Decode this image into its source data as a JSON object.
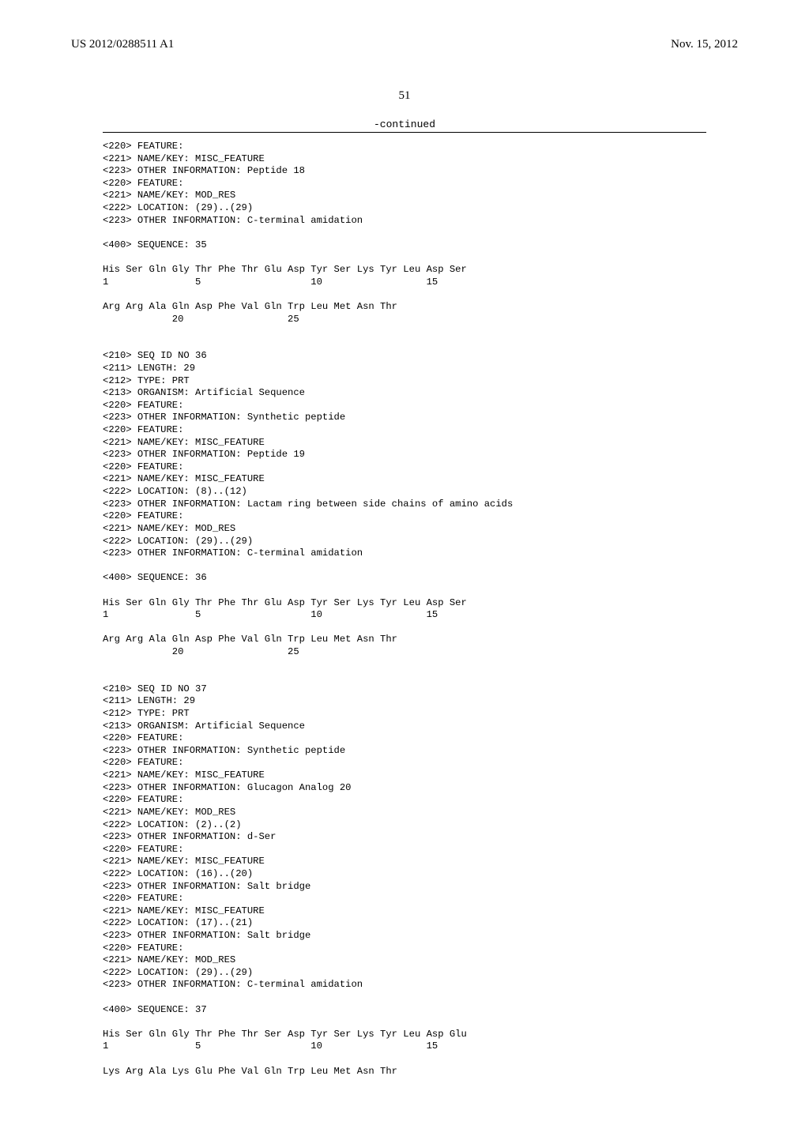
{
  "header": {
    "pub_number": "US 2012/0288511 A1",
    "pub_date": "Nov. 15, 2012"
  },
  "page_number": "51",
  "continued_label": "-continued",
  "blocks": [
    {
      "lines": [
        "<220> FEATURE:",
        "<221> NAME/KEY: MISC_FEATURE",
        "<223> OTHER INFORMATION: Peptide 18",
        "<220> FEATURE:",
        "<221> NAME/KEY: MOD_RES",
        "<222> LOCATION: (29)..(29)",
        "<223> OTHER INFORMATION: C-terminal amidation",
        "",
        "<400> SEQUENCE: 35",
        "",
        "His Ser Gln Gly Thr Phe Thr Glu Asp Tyr Ser Lys Tyr Leu Asp Ser",
        "1               5                   10                  15",
        "",
        "Arg Arg Ala Gln Asp Phe Val Gln Trp Leu Met Asn Thr",
        "            20                  25",
        "",
        "",
        "<210> SEQ ID NO 36",
        "<211> LENGTH: 29",
        "<212> TYPE: PRT",
        "<213> ORGANISM: Artificial Sequence",
        "<220> FEATURE:",
        "<223> OTHER INFORMATION: Synthetic peptide",
        "<220> FEATURE:",
        "<221> NAME/KEY: MISC_FEATURE",
        "<223> OTHER INFORMATION: Peptide 19",
        "<220> FEATURE:",
        "<221> NAME/KEY: MISC_FEATURE",
        "<222> LOCATION: (8)..(12)",
        "<223> OTHER INFORMATION: Lactam ring between side chains of amino acids",
        "<220> FEATURE:",
        "<221> NAME/KEY: MOD_RES",
        "<222> LOCATION: (29)..(29)",
        "<223> OTHER INFORMATION: C-terminal amidation",
        "",
        "<400> SEQUENCE: 36",
        "",
        "His Ser Gln Gly Thr Phe Thr Glu Asp Tyr Ser Lys Tyr Leu Asp Ser",
        "1               5                   10                  15",
        "",
        "Arg Arg Ala Gln Asp Phe Val Gln Trp Leu Met Asn Thr",
        "            20                  25",
        "",
        "",
        "<210> SEQ ID NO 37",
        "<211> LENGTH: 29",
        "<212> TYPE: PRT",
        "<213> ORGANISM: Artificial Sequence",
        "<220> FEATURE:",
        "<223> OTHER INFORMATION: Synthetic peptide",
        "<220> FEATURE:",
        "<221> NAME/KEY: MISC_FEATURE",
        "<223> OTHER INFORMATION: Glucagon Analog 20",
        "<220> FEATURE:",
        "<221> NAME/KEY: MOD_RES",
        "<222> LOCATION: (2)..(2)",
        "<223> OTHER INFORMATION: d-Ser",
        "<220> FEATURE:",
        "<221> NAME/KEY: MISC_FEATURE",
        "<222> LOCATION: (16)..(20)",
        "<223> OTHER INFORMATION: Salt bridge",
        "<220> FEATURE:",
        "<221> NAME/KEY: MISC_FEATURE",
        "<222> LOCATION: (17)..(21)",
        "<223> OTHER INFORMATION: Salt bridge",
        "<220> FEATURE:",
        "<221> NAME/KEY: MOD_RES",
        "<222> LOCATION: (29)..(29)",
        "<223> OTHER INFORMATION: C-terminal amidation",
        "",
        "<400> SEQUENCE: 37",
        "",
        "His Ser Gln Gly Thr Phe Thr Ser Asp Tyr Ser Lys Tyr Leu Asp Glu",
        "1               5                   10                  15",
        "",
        "Lys Arg Ala Lys Glu Phe Val Gln Trp Leu Met Asn Thr"
      ]
    }
  ]
}
